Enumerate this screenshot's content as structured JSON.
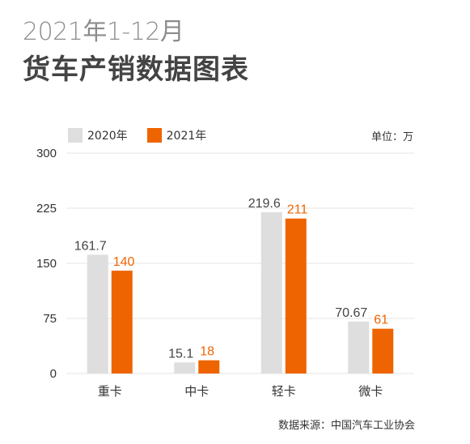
{
  "header": {
    "subtitle": "2021年1-12月",
    "title": "货车产销数据图表"
  },
  "unit_label": "单位：万",
  "source_label": "数据来源：中国汽车工业协会",
  "colors": {
    "series_2020": "#dedede",
    "series_2021": "#ee6400",
    "label_2020": "#444444",
    "label_2021": "#ee6400",
    "grid": "#e6e6e6"
  },
  "chart_data": {
    "type": "bar",
    "categories": [
      "重卡",
      "中卡",
      "轻卡",
      "微卡"
    ],
    "series": [
      {
        "name": "2020年",
        "values": [
          161.7,
          15.1,
          219.6,
          70.67
        ],
        "labels": [
          "161.7",
          "15.1",
          "219.6",
          "70.67"
        ]
      },
      {
        "name": "2021年",
        "values": [
          140,
          18,
          211,
          61
        ],
        "labels": [
          "140",
          "18",
          "211",
          "61"
        ]
      }
    ],
    "ylim": [
      0,
      300
    ],
    "yticks": [
      0,
      75,
      150,
      225,
      300
    ],
    "grid": true,
    "legend": "top-left"
  }
}
